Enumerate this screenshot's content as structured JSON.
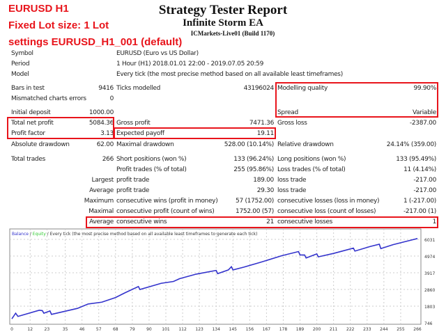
{
  "annotations": {
    "line1": "EURUSD H1",
    "line2": "Fixed Lot size: 1 Lot",
    "line3": "settings EURUSD_H1_001 (default)",
    "color": "#e8141b"
  },
  "header": {
    "title": "Strategy Tester Report",
    "ea_name": "Infinite Storm EA",
    "server": "ICMarkets-Live01 (Build 1170)"
  },
  "rows": [
    {
      "l1": "Symbol",
      "l2": "EURUSD (Euro vs US Dollar)"
    },
    {
      "l1": "Period",
      "l2": "1 Hour (H1) 2018.01.01 22:00 - 2019.07.05 20:59"
    },
    {
      "l1": "Model",
      "l2": "Every tick (the most precise method based on all available least timeframes)"
    },
    {
      "l1": "Bars in test",
      "v1": "9416",
      "l2": "Ticks modelled",
      "v2": "43196024",
      "l3": "Modelling quality",
      "v3": "99.90%"
    },
    {
      "l1": "Mismatched charts errors",
      "v1": "0"
    },
    {
      "l1": "Initial deposit",
      "v1": "1000.00",
      "l3": "Spread",
      "v3": "Variable"
    },
    {
      "l1": "Total net profit",
      "v1": "5084.36",
      "l2": "Gross profit",
      "v2": "7471.36",
      "l3": "Gross loss",
      "v3": "-2387.00"
    },
    {
      "l1": "Profit factor",
      "v1": "3.13",
      "l2": "Expected payoff",
      "v2": "19.11"
    },
    {
      "l1": "Absolute drawdown",
      "v1": "62.00",
      "l2": "Maximal drawdown",
      "v2": "528.00 (10.14%)",
      "l3": "Relative drawdown",
      "v3": "24.14% (359.00)"
    },
    {
      "l1": "Total trades",
      "v1": "266",
      "l2": "Short positions (won %)",
      "v2": "133 (96.24%)",
      "l3": "Long positions (won %)",
      "v3": "133 (95.49%)"
    },
    {
      "l2": "Profit trades (% of total)",
      "v2": "255 (95.86%)",
      "l3": "Loss trades (% of total)",
      "v3": "11 (4.14%)"
    },
    {
      "v1": "Largest",
      "l2": "profit trade",
      "v2": "189.00",
      "l3": "loss trade",
      "v3": "-217.00"
    },
    {
      "v1": "Average",
      "l2": "profit trade",
      "v2": "29.30",
      "l3": "loss trade",
      "v3": "-217.00"
    },
    {
      "v1": "Maximum",
      "l2": "consecutive wins (profit in money)",
      "v2": "57 (1752.00)",
      "l3": "consecutive losses (loss in money)",
      "v3": "1 (-217.00)"
    },
    {
      "v1": "Maximal",
      "l2": "consecutive profit (count of wins)",
      "v2": "1752.00 (57)",
      "l3": "consecutive loss (count of losses)",
      "v3": "-217.00 (1)"
    },
    {
      "v1": "Average",
      "l2": "consecutive wins",
      "v2": "21",
      "l3": "consecutive losses",
      "v3": "1"
    }
  ],
  "chart_data": {
    "type": "line",
    "legend": {
      "balance": "Balance",
      "sep1": " / ",
      "equity": "Equity",
      "rest": " / Every tick (the most precise method based on all available least timeframes to generate each tick)"
    },
    "colors": {
      "balance": "#3333cc",
      "equity": "#33cc33"
    },
    "xticks": [
      0,
      12,
      23,
      35,
      46,
      57,
      68,
      79,
      90,
      101,
      112,
      123,
      134,
      145,
      156,
      167,
      178,
      189,
      200,
      211,
      222,
      233,
      244,
      255,
      266
    ],
    "yticks": [
      746,
      1803,
      2860,
      3917,
      4974,
      6031
    ],
    "xlim": [
      0,
      268
    ],
    "ylim": [
      746,
      6300
    ],
    "grid": true,
    "series": [
      {
        "name": "Balance",
        "points": [
          [
            0,
            1000
          ],
          [
            2.5,
            1358
          ],
          [
            4,
            1154
          ],
          [
            18,
            1547
          ],
          [
            20,
            1520
          ],
          [
            21,
            1358
          ],
          [
            25,
            1500
          ],
          [
            26,
            1285
          ],
          [
            43,
            1663
          ],
          [
            50,
            1940
          ],
          [
            59,
            2056
          ],
          [
            68,
            2348
          ],
          [
            74,
            2640
          ],
          [
            83,
            3046
          ],
          [
            84,
            2857
          ],
          [
            98,
            3250
          ],
          [
            106,
            3367
          ],
          [
            110,
            3542
          ],
          [
            121,
            3833
          ],
          [
            134,
            4066
          ],
          [
            135,
            3862
          ],
          [
            142,
            4096
          ],
          [
            144,
            4300
          ],
          [
            145,
            4096
          ],
          [
            152,
            4270
          ],
          [
            163,
            4576
          ],
          [
            177,
            4997
          ],
          [
            188,
            5260
          ],
          [
            189,
            5041
          ],
          [
            192,
            5041
          ],
          [
            193,
            4852
          ],
          [
            200,
            5114
          ],
          [
            201,
            4925
          ],
          [
            211,
            5143
          ],
          [
            224,
            5478
          ],
          [
            225,
            5289
          ],
          [
            235,
            5580
          ],
          [
            241,
            5726
          ],
          [
            242,
            5449
          ],
          [
            250,
            5697
          ],
          [
            262,
            5988
          ],
          [
            266,
            6084
          ]
        ]
      }
    ]
  }
}
